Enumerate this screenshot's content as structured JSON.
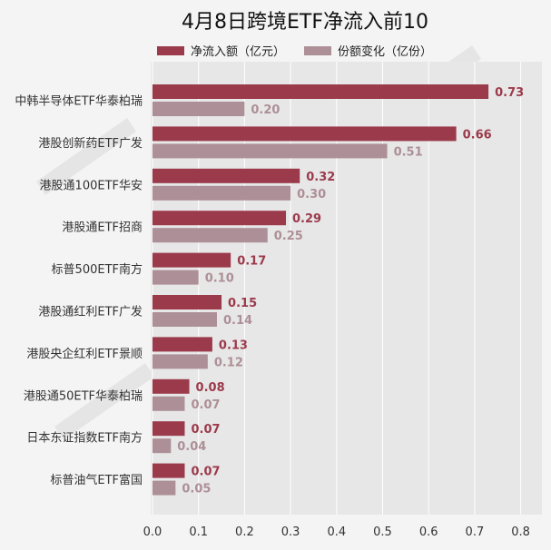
{
  "chart_data": {
    "type": "bar",
    "orientation": "horizontal",
    "title": "4月8日跨境ETF净流入前10",
    "xlim": [
      0,
      0.85
    ],
    "xticks": [
      "0.0",
      "0.1",
      "0.2",
      "0.3",
      "0.4",
      "0.5",
      "0.6",
      "0.7",
      "0.8"
    ],
    "grid": true,
    "legend_position": "top-center",
    "categories": [
      "中韩半导体ETF华泰柏瑞",
      "港股创新药ETF广发",
      "港股通100ETF华安",
      "港股通ETF招商",
      "标普500ETF南方",
      "港股通红利ETF广发",
      "港股央企红利ETF景顺",
      "港股通50ETF华泰柏瑞",
      "日本东证指数ETF南方",
      "标普油气ETF富国"
    ],
    "series": [
      {
        "name": "净流入额（亿元）",
        "color": "#9b3a4b",
        "values": [
          0.73,
          0.66,
          0.32,
          0.29,
          0.17,
          0.15,
          0.13,
          0.08,
          0.07,
          0.07
        ],
        "labels": [
          "0.73",
          "0.66",
          "0.32",
          "0.29",
          "0.17",
          "0.15",
          "0.13",
          "0.08",
          "0.07",
          "0.07"
        ]
      },
      {
        "name": "份额变化（亿份）",
        "color": "#ad8f97",
        "values": [
          0.2,
          0.51,
          0.3,
          0.25,
          0.1,
          0.14,
          0.12,
          0.07,
          0.04,
          0.05
        ],
        "labels": [
          "0.20",
          "0.51",
          "0.30",
          "0.25",
          "0.10",
          "0.14",
          "0.12",
          "0.07",
          "0.04",
          "0.05"
        ]
      }
    ]
  }
}
